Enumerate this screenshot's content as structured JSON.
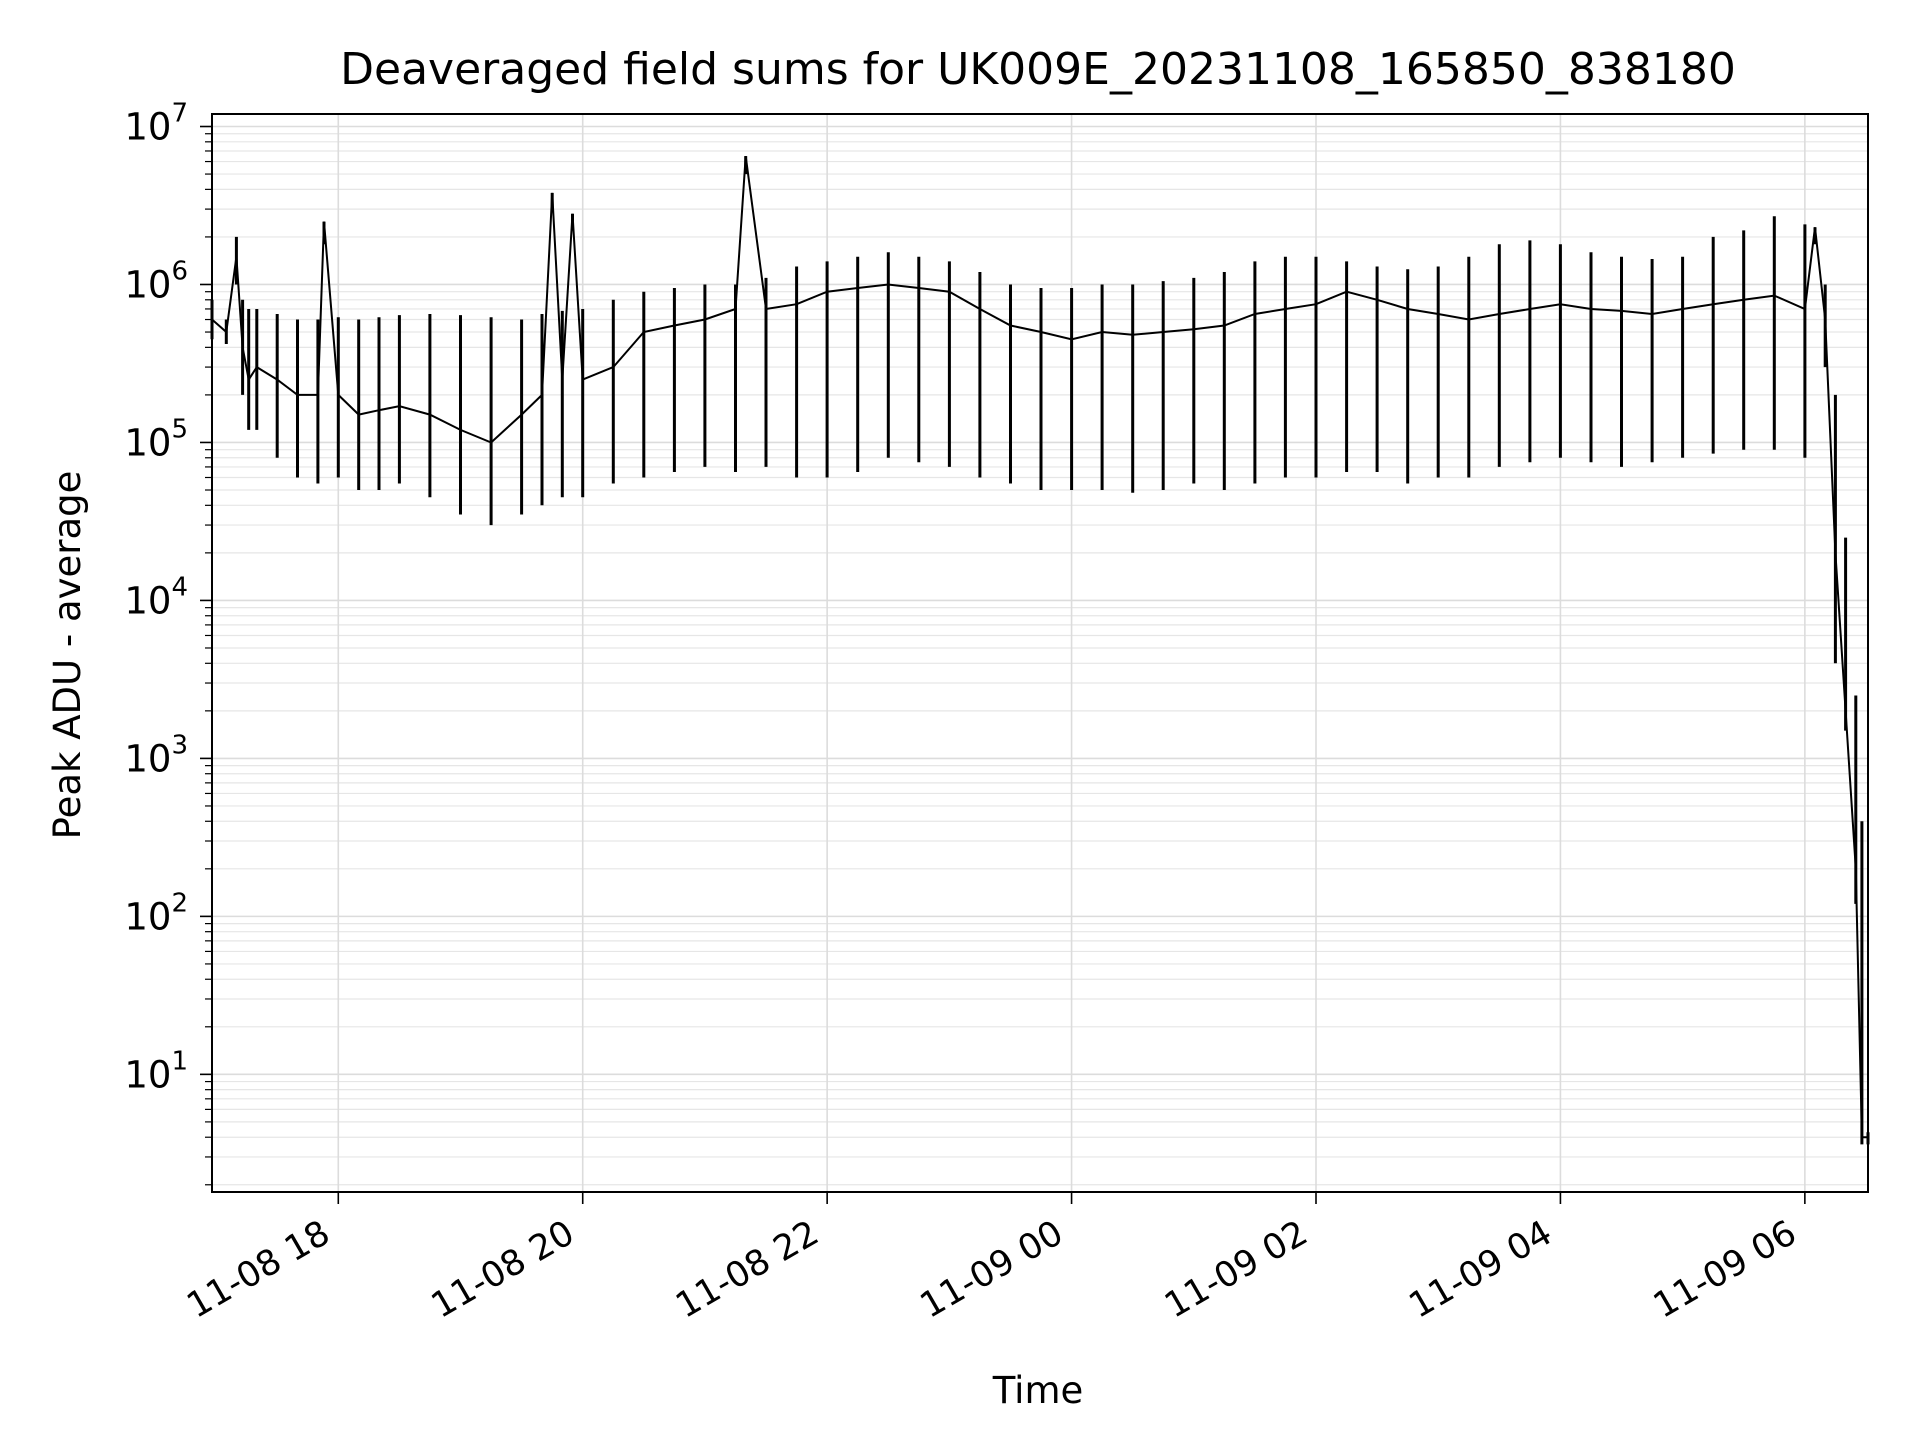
{
  "chart_data": {
    "type": "line",
    "title": "Deaveraged field sums for UK009E_20231108_165850_838180",
    "xlabel": "Time",
    "ylabel": "Peak ADU - average",
    "y_scale": "log",
    "ylim": [
      1.8,
      12000000
    ],
    "xlim": [
      "2023-11-08 16:58",
      "2023-11-09 06:31"
    ],
    "grid": true,
    "line_color": "#000000",
    "x_ticks": [
      {
        "value": "2023-11-08 18:00",
        "label": "11-08 18"
      },
      {
        "value": "2023-11-08 20:00",
        "label": "11-08 20"
      },
      {
        "value": "2023-11-08 22:00",
        "label": "11-08 22"
      },
      {
        "value": "2023-11-09 00:00",
        "label": "11-09 00"
      },
      {
        "value": "2023-11-09 02:00",
        "label": "11-09 02"
      },
      {
        "value": "2023-11-09 04:00",
        "label": "11-09 04"
      },
      {
        "value": "2023-11-09 06:00",
        "label": "11-09 06"
      }
    ],
    "y_ticks": [
      {
        "value": 10,
        "base": "10",
        "exp": "1"
      },
      {
        "value": 100,
        "base": "10",
        "exp": "2"
      },
      {
        "value": 1000,
        "base": "10",
        "exp": "3"
      },
      {
        "value": 10000,
        "base": "10",
        "exp": "4"
      },
      {
        "value": 100000,
        "base": "10",
        "exp": "5"
      },
      {
        "value": 1000000,
        "base": "10",
        "exp": "6"
      },
      {
        "value": 10000000,
        "base": "10",
        "exp": "7"
      }
    ],
    "series": [
      {
        "x": [
          "2023-11-08 16:58",
          "2023-11-08 17:05",
          "2023-11-08 17:10",
          "2023-11-08 17:13",
          "2023-11-08 17:16",
          "2023-11-08 17:20",
          "2023-11-08 17:30",
          "2023-11-08 17:40",
          "2023-11-08 17:50",
          "2023-11-08 17:53",
          "2023-11-08 18:00",
          "2023-11-08 18:10",
          "2023-11-08 18:20",
          "2023-11-08 18:30",
          "2023-11-08 18:45",
          "2023-11-08 19:00",
          "2023-11-08 19:15",
          "2023-11-08 19:30",
          "2023-11-08 19:40",
          "2023-11-08 19:45",
          "2023-11-08 19:50",
          "2023-11-08 19:55",
          "2023-11-08 20:00",
          "2023-11-08 20:15",
          "2023-11-08 20:30",
          "2023-11-08 20:45",
          "2023-11-08 21:00",
          "2023-11-08 21:15",
          "2023-11-08 21:20",
          "2023-11-08 21:30",
          "2023-11-08 21:45",
          "2023-11-08 22:00",
          "2023-11-08 22:15",
          "2023-11-08 22:30",
          "2023-11-08 22:45",
          "2023-11-08 23:00",
          "2023-11-08 23:15",
          "2023-11-08 23:30",
          "2023-11-08 23:45",
          "2023-11-09 00:00",
          "2023-11-09 00:15",
          "2023-11-09 00:30",
          "2023-11-09 00:45",
          "2023-11-09 01:00",
          "2023-11-09 01:15",
          "2023-11-09 01:30",
          "2023-11-09 01:45",
          "2023-11-09 02:00",
          "2023-11-09 02:15",
          "2023-11-09 02:30",
          "2023-11-09 02:45",
          "2023-11-09 03:00",
          "2023-11-09 03:15",
          "2023-11-09 03:30",
          "2023-11-09 03:45",
          "2023-11-09 04:00",
          "2023-11-09 04:15",
          "2023-11-09 04:30",
          "2023-11-09 04:45",
          "2023-11-09 05:00",
          "2023-11-09 05:15",
          "2023-11-09 05:30",
          "2023-11-09 05:45",
          "2023-11-09 06:00",
          "2023-11-09 06:05",
          "2023-11-09 06:10",
          "2023-11-09 06:15",
          "2023-11-09 06:20",
          "2023-11-09 06:25",
          "2023-11-09 06:28",
          "2023-11-09 06:31"
        ],
        "y": [
          600000,
          500000,
          1500000,
          400000,
          250000,
          300000,
          250000,
          200000,
          200000,
          2500000,
          200000,
          150000,
          160000,
          170000,
          150000,
          120000,
          100000,
          150000,
          200000,
          3800000,
          250000,
          2800000,
          250000,
          300000,
          500000,
          550000,
          600000,
          700000,
          6500000,
          700000,
          750000,
          900000,
          950000,
          1000000,
          950000,
          900000,
          700000,
          550000,
          500000,
          450000,
          500000,
          480000,
          500000,
          520000,
          550000,
          650000,
          700000,
          750000,
          900000,
          800000,
          700000,
          650000,
          600000,
          650000,
          700000,
          750000,
          700000,
          680000,
          650000,
          700000,
          750000,
          800000,
          850000,
          700000,
          2300000,
          600000,
          20000,
          2000,
          200,
          4,
          4
        ],
        "low": [
          450000,
          420000,
          1000000,
          200000,
          120000,
          120000,
          80000,
          60000,
          55000,
          1800000,
          60000,
          50000,
          50000,
          55000,
          45000,
          35000,
          30000,
          35000,
          40000,
          3000000,
          45000,
          2200000,
          45000,
          55000,
          60000,
          65000,
          70000,
          65000,
          5000000,
          70000,
          60000,
          60000,
          65000,
          80000,
          75000,
          70000,
          60000,
          55000,
          50000,
          50000,
          50000,
          48000,
          50000,
          55000,
          50000,
          55000,
          60000,
          60000,
          65000,
          65000,
          55000,
          60000,
          60000,
          70000,
          75000,
          80000,
          75000,
          70000,
          75000,
          80000,
          85000,
          90000,
          90000,
          80000,
          1800000,
          300000,
          4000,
          1500,
          120,
          3.6,
          3.6
        ],
        "high": [
          800000,
          600000,
          2000000,
          800000,
          700000,
          700000,
          650000,
          600000,
          600000,
          2500000,
          620000,
          600000,
          620000,
          640000,
          650000,
          640000,
          620000,
          600000,
          650000,
          3800000,
          680000,
          2800000,
          700000,
          800000,
          900000,
          950000,
          1000000,
          1000000,
          6500000,
          1100000,
          1300000,
          1400000,
          1500000,
          1600000,
          1500000,
          1400000,
          1200000,
          1000000,
          950000,
          950000,
          1000000,
          1000000,
          1050000,
          1100000,
          1200000,
          1400000,
          1500000,
          1500000,
          1400000,
          1300000,
          1250000,
          1300000,
          1500000,
          1800000,
          1900000,
          1800000,
          1600000,
          1500000,
          1450000,
          1500000,
          2000000,
          2200000,
          2700000,
          2400000,
          2300000,
          1000000,
          200000,
          25000,
          2500,
          400,
          4.3
        ]
      }
    ]
  }
}
